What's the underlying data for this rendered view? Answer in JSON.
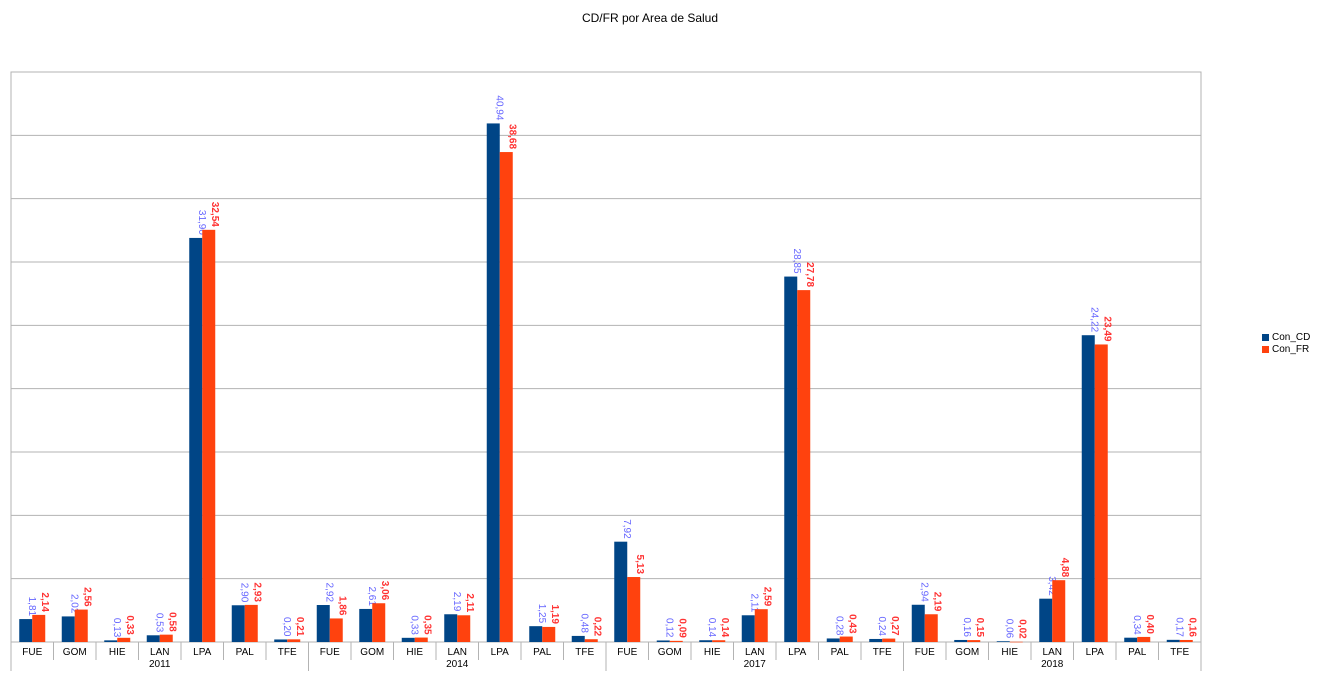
{
  "chart_data": {
    "type": "bar",
    "title": "CD/FR por Area de Salud",
    "xlabel": "",
    "ylabel": "",
    "ylim": [
      0,
      45
    ],
    "grid": true,
    "legend_position": "right",
    "groups": [
      "2011",
      "2014",
      "2017",
      "2018"
    ],
    "subcategories": [
      "FUE",
      "GOM",
      "HIE",
      "LAN",
      "LPA",
      "PAL",
      "TFE"
    ],
    "series": [
      {
        "name": "Con_CD",
        "color": "#004586",
        "label_color": "#6666ff",
        "values": [
          [
            1.81,
            2.02,
            0.13,
            0.53,
            31.9,
            2.9,
            0.2
          ],
          [
            2.92,
            2.61,
            0.33,
            2.19,
            40.94,
            1.25,
            0.48
          ],
          [
            7.92,
            0.12,
            0.14,
            2.11,
            28.85,
            0.28,
            0.24
          ],
          [
            2.94,
            0.16,
            0.06,
            3.42,
            24.22,
            0.34,
            0.17
          ]
        ],
        "labels": [
          [
            "1,81",
            "2,02",
            "0,13",
            "0,53",
            "31,90",
            "2,90",
            "0,20"
          ],
          [
            "2,92",
            "2,61",
            "0,33",
            "2,19",
            "40,94",
            "1,25",
            "0,48"
          ],
          [
            "7,92",
            "0,12",
            "0,14",
            "2,11",
            "28,85",
            "0,28",
            "0,24"
          ],
          [
            "2,94",
            "0,16",
            "0,06",
            "3,42",
            "24,22",
            "0,34",
            "0,17"
          ]
        ]
      },
      {
        "name": "Con_FR",
        "color": "#ff420e",
        "label_color": "#ff3333",
        "values": [
          [
            2.14,
            2.56,
            0.33,
            0.58,
            32.54,
            2.93,
            0.21
          ],
          [
            1.86,
            3.06,
            0.35,
            2.11,
            38.68,
            1.19,
            0.22
          ],
          [
            5.13,
            0.09,
            0.14,
            2.59,
            27.78,
            0.43,
            0.27
          ],
          [
            2.19,
            0.15,
            0.02,
            4.88,
            23.49,
            0.4,
            0.16
          ]
        ],
        "labels": [
          [
            "2,14",
            "2,56",
            "0,33",
            "0,58",
            "32,54",
            "2,93",
            "0,21"
          ],
          [
            "1,86",
            "3,06",
            "0,35",
            "2,11",
            "38,68",
            "1,19",
            "0,22"
          ],
          [
            "5,13",
            "0,09",
            "0,14",
            "2,59",
            "27,78",
            "0,43",
            "0,27"
          ],
          [
            "2,19",
            "0,15",
            "0,02",
            "4,88",
            "23,49",
            "0,40",
            "0,16"
          ]
        ]
      }
    ]
  }
}
